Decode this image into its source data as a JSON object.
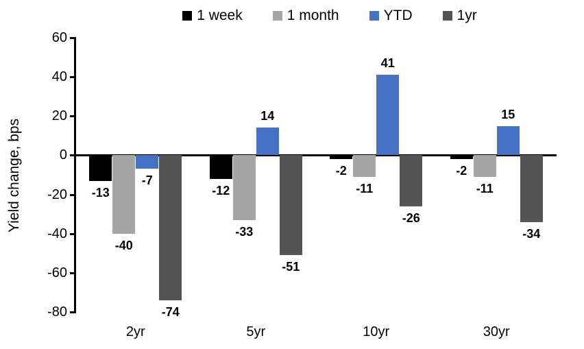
{
  "chart_data": {
    "type": "bar",
    "title": "",
    "xlabel": "",
    "ylabel": "Yield change, bps",
    "categories": [
      "2yr",
      "5yr",
      "10yr",
      "30yr"
    ],
    "series": [
      {
        "name": "1 week",
        "color": "#000000",
        "values": [
          -13,
          -12,
          -2,
          -2
        ]
      },
      {
        "name": "1 month",
        "color": "#A5A5A5",
        "values": [
          -40,
          -33,
          -11,
          -11
        ]
      },
      {
        "name": "YTD",
        "color": "#4472C4",
        "values": [
          -7,
          14,
          41,
          15
        ]
      },
      {
        "name": "1yr",
        "color": "#545454",
        "values": [
          -74,
          -51,
          -26,
          -34
        ]
      }
    ],
    "ylim": [
      -80,
      60
    ],
    "yticks": [
      60,
      40,
      20,
      0,
      -20,
      -40,
      -60,
      -80
    ],
    "grid": false,
    "legend_position": "top",
    "data_labels": true
  }
}
